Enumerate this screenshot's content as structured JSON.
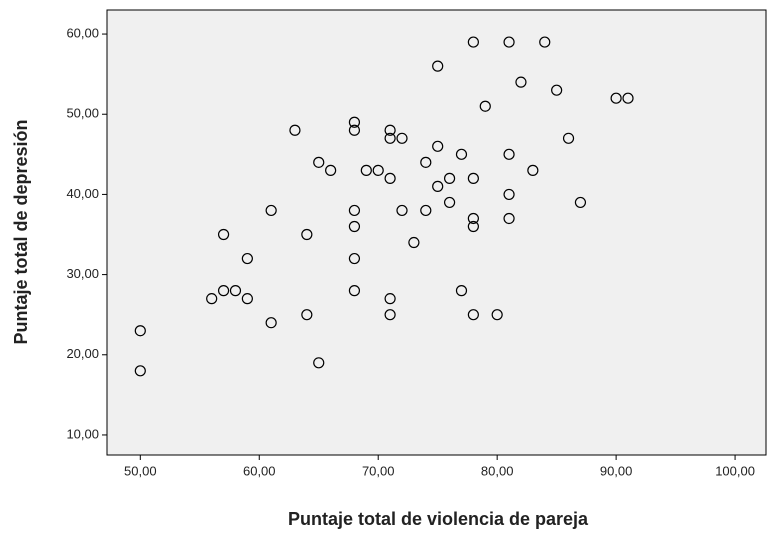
{
  "chart_data": {
    "type": "scatter",
    "xlabel": "Puntaje total de violencia de pareja",
    "ylabel": "Puntaje total de depresión",
    "x": [
      50,
      50,
      56,
      57,
      57,
      58,
      59,
      59,
      61,
      61,
      63,
      64,
      64,
      65,
      65,
      66,
      68,
      68,
      68,
      68,
      68,
      68,
      69,
      70,
      71,
      71,
      71,
      71,
      71,
      72,
      72,
      73,
      74,
      74,
      75,
      75,
      75,
      76,
      76,
      77,
      77,
      78,
      78,
      78,
      78,
      78,
      79,
      80,
      81,
      81,
      81,
      81,
      82,
      83,
      84,
      85,
      86,
      87,
      90,
      91
    ],
    "values": [
      23,
      18,
      27,
      28,
      35,
      28,
      27,
      32,
      38,
      24,
      48,
      35,
      25,
      44,
      19,
      43,
      49,
      48,
      38,
      36,
      32,
      28,
      43,
      43,
      48,
      47,
      42,
      27,
      25,
      47,
      38,
      34,
      44,
      38,
      56,
      46,
      41,
      42,
      39,
      45,
      28,
      59,
      42,
      37,
      36,
      25,
      51,
      25,
      59,
      45,
      40,
      37,
      54,
      43,
      59,
      53,
      47,
      39,
      52,
      52
    ],
    "xlim": [
      47.2,
      102.6
    ],
    "ylim": [
      7.5,
      63
    ],
    "xticks": [
      {
        "value": 50,
        "label": "50,00"
      },
      {
        "value": 60,
        "label": "60,00"
      },
      {
        "value": 70,
        "label": "70,00"
      },
      {
        "value": 80,
        "label": "80,00"
      },
      {
        "value": 90,
        "label": "90,00"
      },
      {
        "value": 100,
        "label": "100,00"
      }
    ],
    "yticks": [
      {
        "value": 10,
        "label": "10,00"
      },
      {
        "value": 20,
        "label": "20,00"
      },
      {
        "value": 30,
        "label": "30,00"
      },
      {
        "value": 40,
        "label": "40,00"
      },
      {
        "value": 50,
        "label": "50,00"
      },
      {
        "value": 60,
        "label": "60,00"
      }
    ],
    "color": "#000000"
  }
}
